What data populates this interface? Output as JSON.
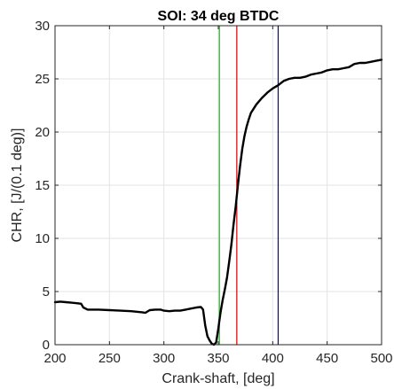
{
  "chart_data": {
    "type": "line",
    "title": "SOI: 34 deg BTDC",
    "xlabel": "Crank-shaft, [deg]",
    "ylabel": "CHR, [J/(0.1 deg)]",
    "xlim": [
      200,
      500
    ],
    "ylim": [
      0,
      30
    ],
    "xticks": [
      200,
      250,
      300,
      350,
      400,
      450,
      500
    ],
    "yticks": [
      0,
      5,
      10,
      15,
      20,
      25,
      30
    ],
    "grid": true,
    "series": [
      {
        "color": "#000000",
        "x": [
          200,
          205,
          210,
          215,
          220,
          224,
          226,
          230,
          240,
          250,
          260,
          270,
          280,
          283,
          287,
          292,
          297,
          300,
          305,
          310,
          315,
          320,
          325,
          330,
          334,
          336,
          338,
          340,
          342,
          344,
          346,
          348,
          350,
          352,
          354,
          356,
          358,
          360,
          362,
          364,
          366,
          368,
          370,
          372,
          374,
          376,
          378,
          380,
          385,
          390,
          395,
          400,
          405,
          410,
          415,
          420,
          425,
          430,
          435,
          440,
          445,
          450,
          455,
          460,
          465,
          470,
          475,
          480,
          485,
          490,
          495,
          500
        ],
        "y": [
          4.0,
          4.05,
          4.0,
          3.95,
          3.9,
          3.85,
          3.5,
          3.3,
          3.3,
          3.25,
          3.2,
          3.15,
          3.05,
          3.0,
          3.25,
          3.3,
          3.3,
          3.2,
          3.15,
          3.2,
          3.2,
          3.3,
          3.4,
          3.5,
          3.55,
          3.3,
          1.8,
          0.8,
          0.4,
          0.1,
          0.0,
          0.2,
          1.5,
          3.0,
          4.2,
          5.2,
          6.3,
          7.8,
          9.4,
          11.3,
          13.0,
          15.0,
          16.8,
          18.4,
          19.6,
          20.5,
          21.2,
          21.8,
          22.6,
          23.2,
          23.7,
          24.1,
          24.4,
          24.8,
          25.0,
          25.1,
          25.1,
          25.2,
          25.4,
          25.5,
          25.6,
          25.8,
          25.9,
          25.9,
          26.0,
          26.1,
          26.4,
          26.5,
          26.5,
          26.6,
          26.7,
          26.8
        ]
      }
    ],
    "vertical_lines": [
      {
        "x": 351,
        "color": "#00cc00"
      },
      {
        "x": 367,
        "color": "#cc0000"
      },
      {
        "x": 405,
        "color": "#0000cc"
      }
    ]
  }
}
